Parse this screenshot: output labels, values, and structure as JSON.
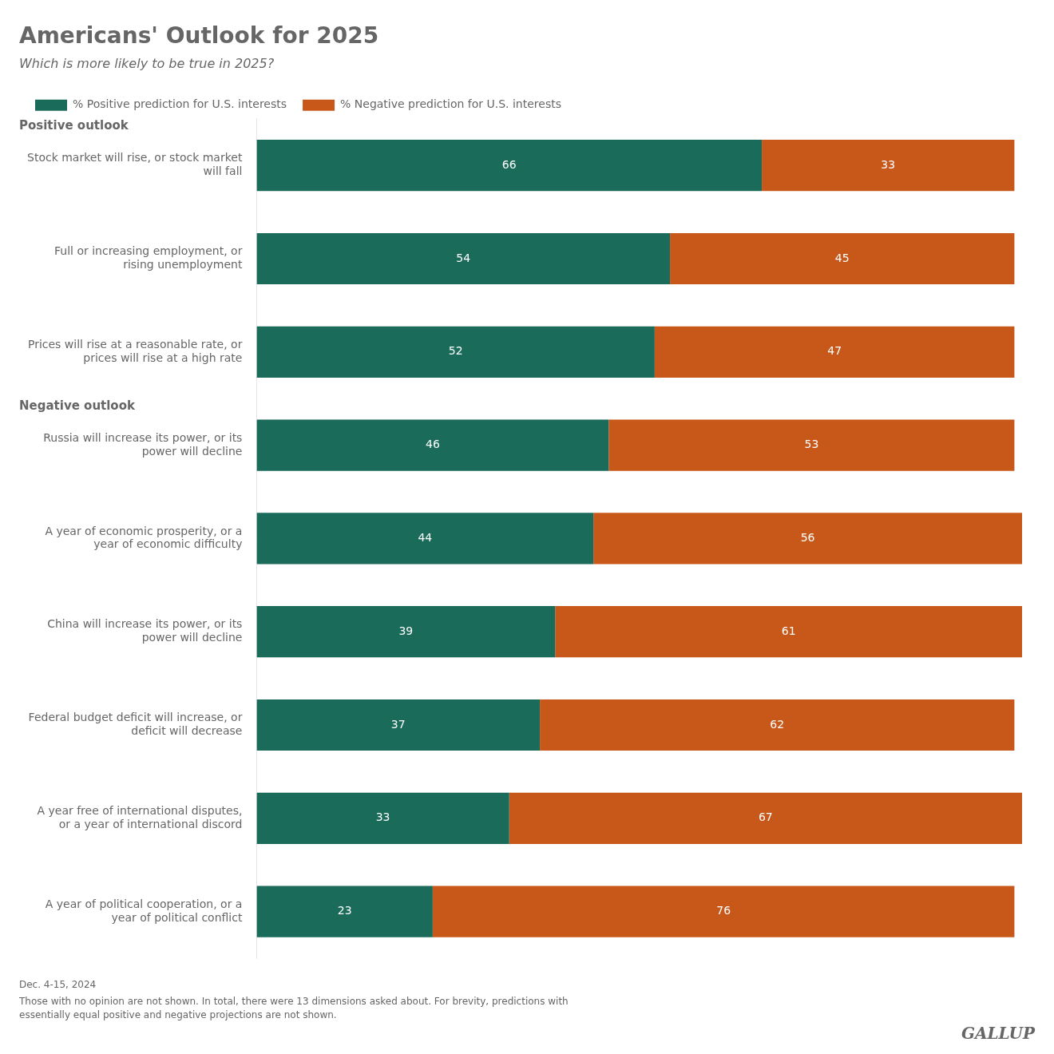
{
  "chart_data": {
    "type": "bar",
    "orientation": "horizontal",
    "stacked": true,
    "title": "Americans' Outlook for 2025",
    "subtitle": "Which is more likely to be true in 2025?",
    "categories": [
      "Stock market will rise, or stock market\nwill fall",
      "Full or increasing employment, or\nrising unemployment",
      "Prices will rise at a reasonable rate, or\nprices will rise at a high rate",
      "Russia will increase its power, or its\npower will decline",
      "A year of economic prosperity, or a\nyear of economic difficulty",
      "China will increase its power, or its\npower will decline",
      "Federal budget deficit will increase, or\ndeficit will decrease",
      "A year free of international disputes,\nor a year of international discord",
      "A year of political cooperation, or a\nyear of political conflict"
    ],
    "series": [
      {
        "name": "% Positive prediction for U.S. interests",
        "color": "#1a6b5a",
        "values": [
          66,
          54,
          52,
          46,
          44,
          39,
          37,
          33,
          23
        ]
      },
      {
        "name": "% Negative prediction for U.S. interests",
        "color": "#c8581a",
        "values": [
          33,
          45,
          47,
          53,
          56,
          61,
          62,
          67,
          76
        ]
      }
    ],
    "xlim": [
      0,
      100
    ],
    "tick_labels": "y",
    "grid": false,
    "legend": "top",
    "data_labels": true,
    "section_headers": [
      {
        "label": "Positive outlook",
        "first_index": 0
      },
      {
        "label": "Negative outlook",
        "first_index": 3
      }
    ],
    "footnotes": [
      "Dec. 4-15, 2024",
      "Those with no opinion are not shown. In total, there were 13 dimensions asked about. For brevity, predictions with\nessentially equal positive and negative projections are not shown."
    ],
    "watermark": "GALLUP"
  }
}
